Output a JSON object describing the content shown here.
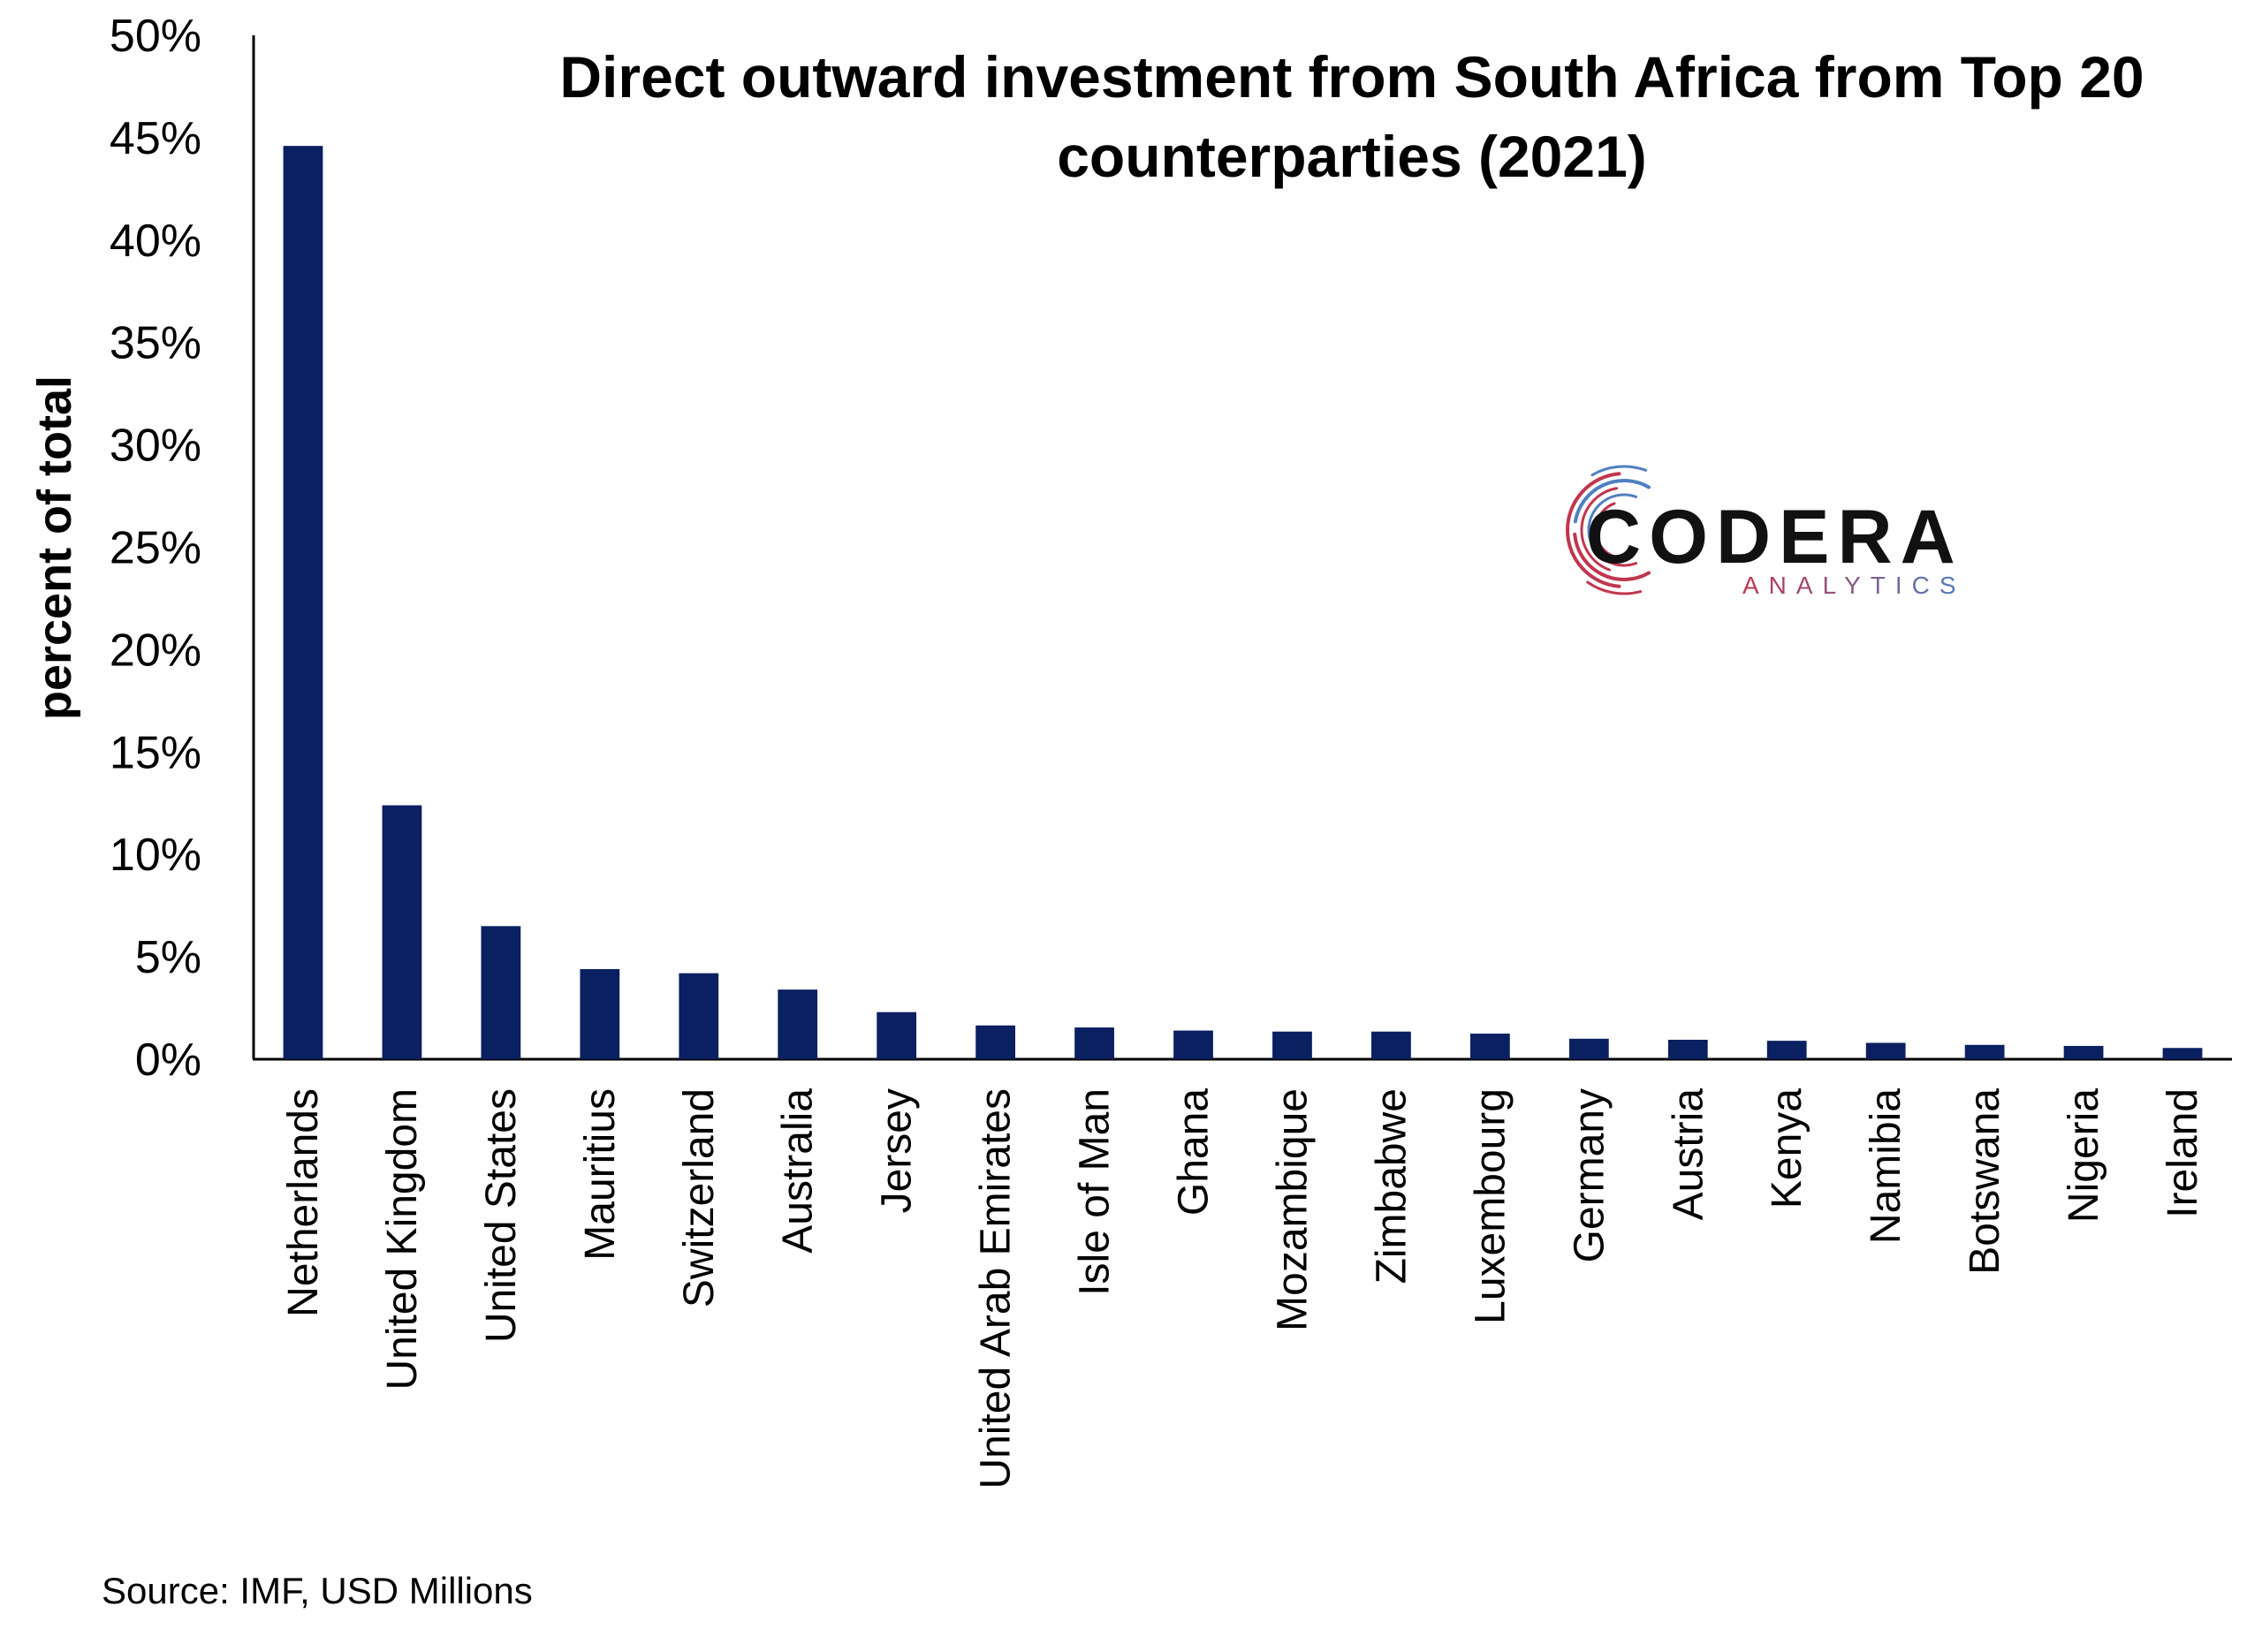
{
  "chart_data": {
    "type": "bar",
    "title_lines": [
      "Direct outward investment from South Africa from Top 20",
      "counterparties (2021)"
    ],
    "xlabel": "",
    "ylabel": "percent of total",
    "ylim": [
      0,
      50
    ],
    "yticks": [
      0,
      5,
      10,
      15,
      20,
      25,
      30,
      35,
      40,
      45,
      50
    ],
    "ytick_labels": [
      "0%",
      "5%",
      "10%",
      "15%",
      "20%",
      "25%",
      "30%",
      "35%",
      "40%",
      "45%",
      "50%"
    ],
    "categories": [
      "Netherlands",
      "United Kingdom",
      "United States",
      "Mauritius",
      "Switzerland",
      "Australia",
      "Jersey",
      "United Arab Emirates",
      "Isle of Man",
      "Ghana",
      "Mozambique",
      "Zimbabwe",
      "Luxembourg",
      "Germany",
      "Austria",
      "Kenya",
      "Namibia",
      "Botswana",
      "Nigeria",
      "Ireland"
    ],
    "values": [
      44.6,
      12.4,
      6.5,
      4.4,
      4.2,
      3.4,
      2.3,
      1.65,
      1.55,
      1.4,
      1.35,
      1.35,
      1.25,
      1.0,
      0.95,
      0.9,
      0.8,
      0.7,
      0.65,
      0.55
    ],
    "bar_color": "#0a2060",
    "grid": false,
    "legend": "none",
    "source_note": "Source: IMF, USD Millions"
  },
  "logo": {
    "name": "CODERA",
    "tagline": "ANALYTICS",
    "colors": {
      "red": "#c0364f",
      "blue": "#4f7fc0",
      "dark": "#111111"
    }
  }
}
